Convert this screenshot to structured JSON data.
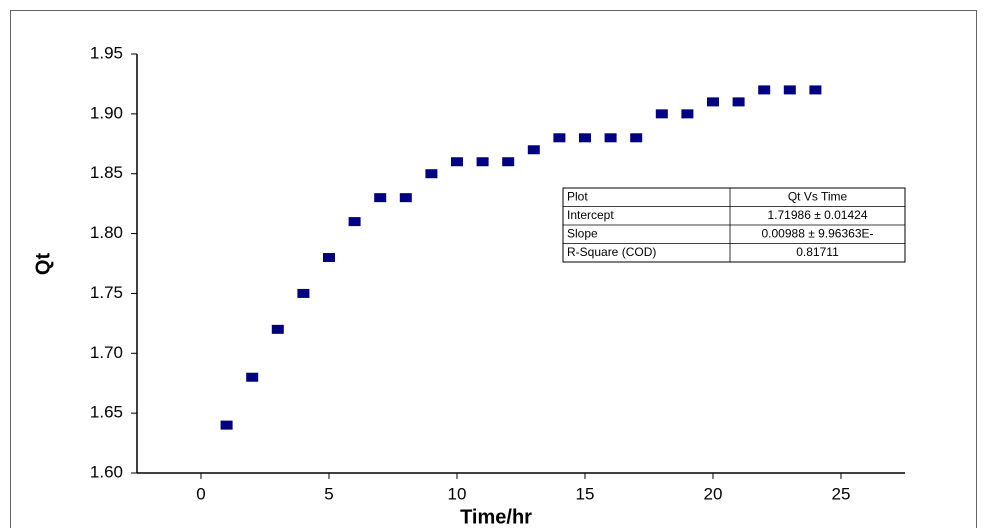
{
  "chart_data": {
    "type": "scatter",
    "xlabel": "Time/hr",
    "ylabel": "Qt",
    "x": [
      1,
      2,
      3,
      4,
      5,
      6,
      7,
      8,
      9,
      10,
      11,
      12,
      13,
      14,
      15,
      16,
      17,
      18,
      19,
      20,
      21,
      22,
      23,
      24
    ],
    "values": [
      1.64,
      1.68,
      1.72,
      1.75,
      1.78,
      1.81,
      1.83,
      1.83,
      1.85,
      1.86,
      1.86,
      1.86,
      1.87,
      1.88,
      1.88,
      1.88,
      1.88,
      1.9,
      1.9,
      1.91,
      1.91,
      1.92,
      1.92,
      1.92
    ],
    "color": "#000080",
    "xlim": [
      -2.5,
      27.5
    ],
    "xticks": [
      0,
      5,
      10,
      15,
      20,
      25
    ],
    "ylim": [
      1.6,
      1.95
    ],
    "yticks": [
      {
        "value": 1.6,
        "label": "1.60"
      },
      1.65,
      {
        "value": 1.7,
        "label": "1.70"
      },
      1.75,
      {
        "value": 1.8,
        "label": "1.80"
      },
      1.85,
      {
        "value": 1.9,
        "label": "1.90"
      },
      1.95
    ],
    "grid": false,
    "stats_table": {
      "rows": [
        [
          "Plot",
          "Qt Vs Time"
        ],
        [
          "Intercept",
          "1.71986 ± 0.01424"
        ],
        [
          "Slope",
          "0.00988 ± 9.96363E-"
        ],
        [
          "R-Square (COD)",
          "0.81711"
        ]
      ]
    }
  }
}
